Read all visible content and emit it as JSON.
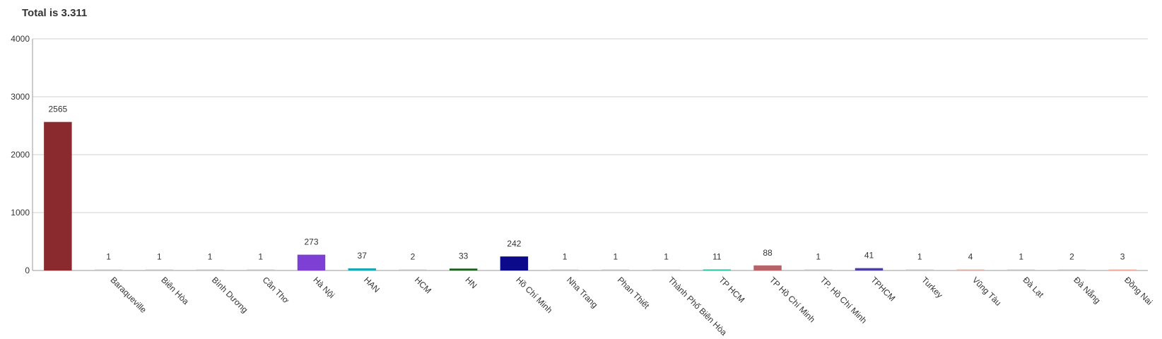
{
  "chart_title": "Total is 3.311",
  "chart_data": {
    "type": "bar",
    "title": "Total is 3.311",
    "xlabel": "",
    "ylabel": "",
    "ylim": [
      0,
      4000
    ],
    "yticks": [
      0,
      1000,
      2000,
      3000,
      4000
    ],
    "grid": true,
    "legend": "none",
    "categories": [
      "",
      "Baraqueville",
      "Biên Hòa",
      "Bình Dương",
      "Cần Thơ",
      "Hà Nội",
      "HAN",
      "HCM",
      "HN",
      "Hồ Chí Minh",
      "Nha Trang",
      "Phan Thiết",
      "Thành Phố Biên Hòa",
      "TP HCM",
      "TP Hồ Chí Minh",
      "TP. Hồ Chí Minh",
      "TPHCM",
      "Turkey",
      "Vũng Tàu",
      "Đà Lạt",
      "Đà Nẵng",
      "Đồng Nai"
    ],
    "values": [
      2565,
      1,
      1,
      1,
      1,
      273,
      37,
      2,
      33,
      242,
      1,
      1,
      1,
      11,
      88,
      1,
      41,
      1,
      4,
      1,
      2,
      3
    ],
    "colors": [
      "#8b2a2e",
      "#c8c8c8",
      "#c8c8c8",
      "#c8c8c8",
      "#c8c8c8",
      "#7e3fd4",
      "#1aa7b5",
      "#c8c8c8",
      "#1c5e1c",
      "#0a0a8a",
      "#c8c8c8",
      "#c8c8c8",
      "#c8c8c8",
      "#2bbfa0",
      "#b56369",
      "#c8c8c8",
      "#4b3fa0",
      "#c8c8c8",
      "#e0b8a8",
      "#c8c8c8",
      "#c8c8c8",
      "#f3b0a0"
    ]
  }
}
